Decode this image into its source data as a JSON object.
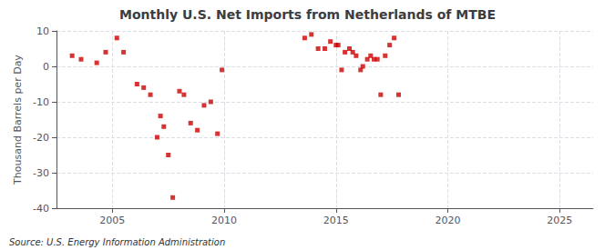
{
  "chart_data": {
    "type": "scatter",
    "title": "Monthly U.S. Net Imports from Netherlands of MTBE",
    "ylabel": "Thousand Barrels per Day",
    "annotations": [
      "Source: U.S. Energy Information Administration"
    ],
    "color": "#cc0000",
    "marker": "square",
    "grid": true,
    "xlim": [
      2002.5,
      2026.5
    ],
    "ylim": [
      -40,
      10
    ],
    "xticks": [
      2005,
      2010,
      2015,
      2020,
      2025
    ],
    "yticks": [
      -40,
      -30,
      -20,
      -10,
      0,
      10
    ],
    "x": [
      2003.2,
      2003.6,
      2004.3,
      2004.7,
      2005.2,
      2005.5,
      2006.1,
      2006.4,
      2006.7,
      2007.0,
      2007.15,
      2007.3,
      2007.5,
      2007.7,
      2008.0,
      2008.2,
      2008.5,
      2008.8,
      2009.1,
      2009.4,
      2009.7,
      2009.9,
      2013.6,
      2013.9,
      2014.2,
      2014.5,
      2014.75,
      2015.0,
      2015.1,
      2015.25,
      2015.4,
      2015.6,
      2015.75,
      2015.9,
      2016.1,
      2016.2,
      2016.4,
      2016.55,
      2016.7,
      2016.85,
      2017.0,
      2017.2,
      2017.4,
      2017.6,
      2017.8
    ],
    "values": [
      3,
      2,
      1,
      4,
      8,
      4,
      -5,
      -6,
      -8,
      -20,
      -14,
      -17,
      -25,
      -37,
      -7,
      -8,
      -16,
      -18,
      -11,
      -10,
      -19,
      -1,
      8,
      9,
      5,
      5,
      7,
      6,
      6,
      -1,
      4,
      5,
      4,
      3,
      -1,
      0,
      2,
      3,
      2,
      2,
      -8,
      3,
      6,
      8,
      -8
    ]
  }
}
